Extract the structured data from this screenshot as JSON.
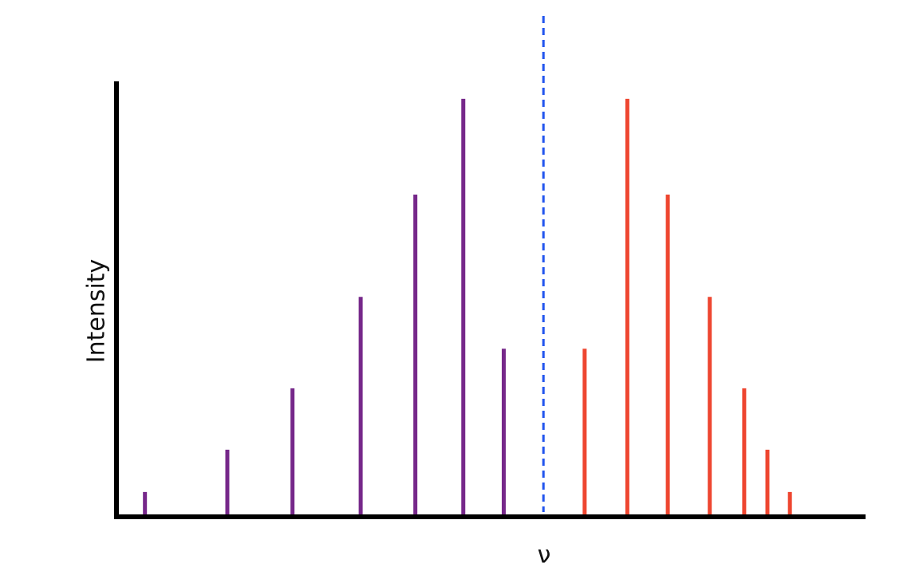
{
  "chart_data": {
    "type": "stem",
    "x_label": "ν",
    "y_label": "Intensity",
    "xlim": [
      0,
      100
    ],
    "ylim": [
      0,
      100
    ],
    "series": [
      {
        "color": "#76288a",
        "x": [
          3.8,
          14.8,
          23.5,
          32.6,
          39.9,
          46.3,
          51.7
        ],
        "values": [
          5.7,
          15.4,
          29.5,
          50.5,
          74,
          96,
          38.6
        ]
      },
      {
        "color": "#ee4630",
        "x": [
          62.5,
          68.2,
          73.6,
          79.2,
          83.8,
          86.9,
          89.9
        ],
        "values": [
          38.6,
          96,
          74,
          50.5,
          29.5,
          15.4,
          5.7
        ]
      }
    ],
    "center_line": {
      "x": 57,
      "color": "#2255ee"
    }
  }
}
